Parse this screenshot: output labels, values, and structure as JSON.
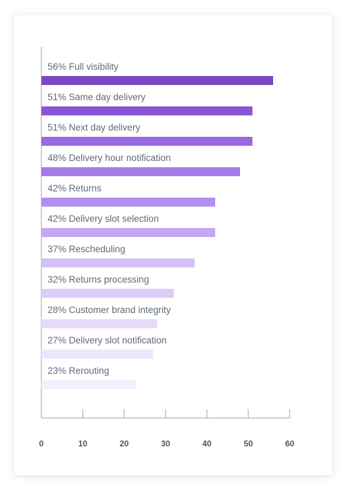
{
  "chart_data": {
    "type": "bar",
    "orientation": "horizontal",
    "title": "",
    "xlabel": "",
    "ylabel": "",
    "xlim": [
      0,
      60
    ],
    "xticks": [
      0,
      10,
      20,
      30,
      40,
      50,
      60
    ],
    "grid": false,
    "bars": [
      {
        "label": "56% Full visibility",
        "value": 56,
        "color": "#7b48c4"
      },
      {
        "label": "51% Same day delivery",
        "value": 51,
        "color": "#8a55d4"
      },
      {
        "label": "51% Next day delivery",
        "value": 51,
        "color": "#9a68e3"
      },
      {
        "label": "48% Delivery hour notification",
        "value": 48,
        "color": "#a57bea"
      },
      {
        "label": "42% Returns",
        "value": 42,
        "color": "#b28fee"
      },
      {
        "label": "42% Delivery slot selection",
        "value": 42,
        "color": "#c3a7f2"
      },
      {
        "label": "37% Rescheduling",
        "value": 37,
        "color": "#d5c0f6"
      },
      {
        "label": "32% Returns processing",
        "value": 32,
        "color": "#dccdf8"
      },
      {
        "label": "28% Customer brand integrity",
        "value": 28,
        "color": "#e6dbfa"
      },
      {
        "label": "27% Delivery slot notification",
        "value": 27,
        "color": "#eee7fc"
      },
      {
        "label": "23% Rerouting",
        "value": 23,
        "color": "#f3effd"
      }
    ]
  }
}
